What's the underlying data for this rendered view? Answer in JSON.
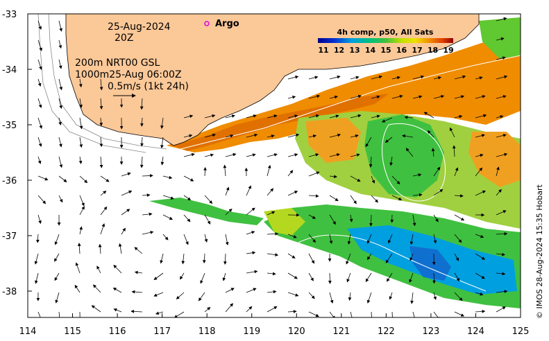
{
  "annotations": {
    "date": "25-Aug-2024",
    "time": "20Z",
    "line1": "200m  NRT00 GSL",
    "line2": "1000m25-Aug 06:00Z",
    "scale": "0.5m/s (1kt 24h)"
  },
  "argo": {
    "label": "Argo",
    "color": "#e000e0"
  },
  "colorbar": {
    "title": "4h comp, p50, All Sats",
    "ticks": [
      "11",
      "12",
      "13",
      "14",
      "15",
      "16",
      "17",
      "18",
      "19"
    ]
  },
  "credit": "© IMOS 28-Aug-2024 15:35 Hobart",
  "x_ticks": [
    "114",
    "115",
    "116",
    "117",
    "118",
    "119",
    "120",
    "121",
    "122",
    "123",
    "124",
    "125"
  ],
  "y_ticks": [
    "-33",
    "-34",
    "-35",
    "-36",
    "-37",
    "-38"
  ],
  "colors": {
    "land": "#fbc898",
    "sst_warm": "#f08c00",
    "sst_mid": "#b4d820",
    "sst_green": "#40c040",
    "sst_cool": "#00a0e0",
    "sst_cold": "#0050c0"
  }
}
